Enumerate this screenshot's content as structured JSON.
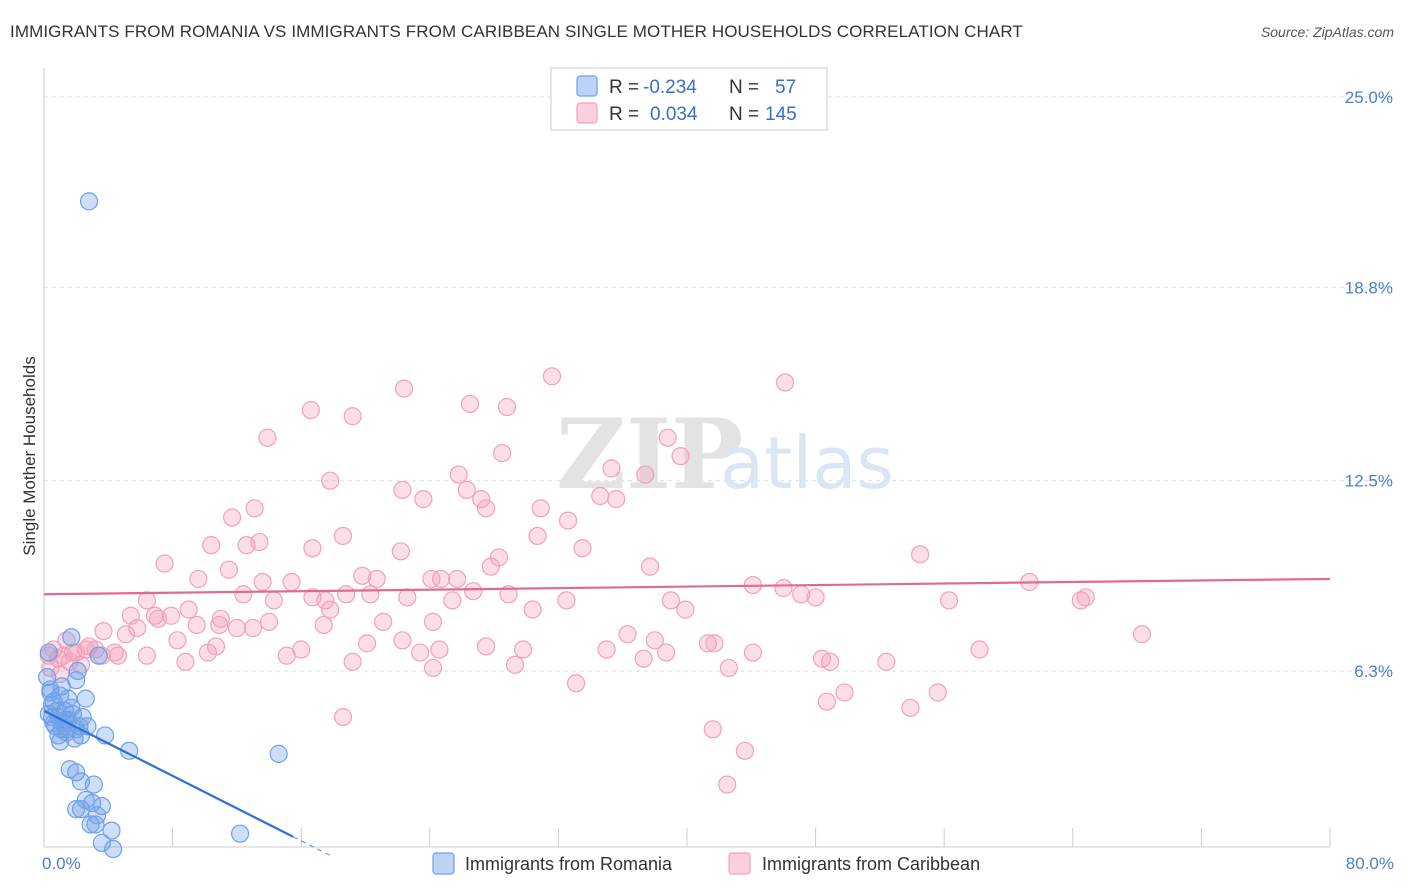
{
  "title": "IMMIGRANTS FROM ROMANIA VS IMMIGRANTS FROM CARIBBEAN SINGLE MOTHER HOUSEHOLDS CORRELATION CHART",
  "source": "Source: ZipAtlas.com",
  "watermark": {
    "zip": "ZIP",
    "atlas": "atlas"
  },
  "colors": {
    "romania": "#6fa0e8",
    "romania_line": "#2f6fd8",
    "caribbean": "#f4a0bb",
    "caribbean_line": "#e06a95",
    "tick_text": "#4a7fd0",
    "grid": "#dddddd"
  },
  "legend": {
    "placement": "top-center",
    "rows": [
      {
        "r_label": "R = ",
        "r_value": "-0.234",
        "n_label": "N = ",
        "n_value": "57"
      },
      {
        "r_label": "R = ",
        "r_value": "0.034",
        "n_label": "N = ",
        "n_value": "145"
      }
    ]
  },
  "chart_data": {
    "type": "scatter",
    "title": "IMMIGRANTS FROM ROMANIA VS IMMIGRANTS FROM CARIBBEAN SINGLE MOTHER HOUSEHOLDS CORRELATION CHART",
    "xlabel": "",
    "ylabel": "Single Mother Households",
    "xlim": [
      0,
      80
    ],
    "ylim": [
      0,
      26
    ],
    "x_tick_labels": {
      "min": "0.0%",
      "max": "80.0%"
    },
    "y_ticks": [
      {
        "value": 6.3,
        "label": "6.3%"
      },
      {
        "value": 12.5,
        "label": "12.5%"
      },
      {
        "value": 18.8,
        "label": "18.8%"
      },
      {
        "value": 25.0,
        "label": "25.0%"
      }
    ],
    "grid": true,
    "legend_placement": "bottom-center",
    "series": [
      {
        "name": "Immigrants from Romania",
        "trend": {
          "x": [
            0,
            15.5
          ],
          "y": [
            5.0,
            0.9
          ],
          "dashed_to_x": 18
        },
        "points": [
          [
            2.8,
            21.6
          ],
          [
            0.3,
            6.9
          ],
          [
            1.7,
            7.4
          ],
          [
            2.1,
            6.3
          ],
          [
            0.4,
            5.6
          ],
          [
            0.6,
            5.3
          ],
          [
            1.0,
            5.5
          ],
          [
            1.5,
            5.4
          ],
          [
            2.6,
            5.4
          ],
          [
            0.8,
            5.0
          ],
          [
            1.3,
            5.0
          ],
          [
            1.8,
            4.9
          ],
          [
            0.5,
            4.8
          ],
          [
            1.2,
            4.6
          ],
          [
            1.5,
            4.7
          ],
          [
            2.4,
            4.8
          ],
          [
            0.7,
            4.5
          ],
          [
            1.1,
            4.4
          ],
          [
            2.0,
            4.4
          ],
          [
            2.7,
            4.5
          ],
          [
            0.9,
            4.2
          ],
          [
            1.4,
            4.3
          ],
          [
            2.3,
            4.2
          ],
          [
            3.8,
            4.2
          ],
          [
            1.0,
            4.0
          ],
          [
            5.3,
            3.7
          ],
          [
            14.6,
            3.6
          ],
          [
            1.6,
            3.1
          ],
          [
            2.0,
            3.0
          ],
          [
            2.3,
            2.7
          ],
          [
            3.1,
            2.6
          ],
          [
            2.6,
            2.1
          ],
          [
            3.0,
            2.0
          ],
          [
            2.0,
            1.8
          ],
          [
            2.3,
            1.8
          ],
          [
            3.6,
            1.9
          ],
          [
            3.3,
            1.6
          ],
          [
            2.9,
            1.3
          ],
          [
            3.2,
            1.3
          ],
          [
            4.2,
            1.1
          ],
          [
            12.2,
            1.0
          ],
          [
            3.6,
            0.7
          ],
          [
            4.3,
            0.5
          ],
          [
            0.2,
            6.1
          ],
          [
            0.5,
            5.2
          ],
          [
            0.9,
            4.8
          ],
          [
            1.3,
            4.7
          ],
          [
            0.3,
            4.9
          ],
          [
            1.7,
            5.1
          ],
          [
            2.2,
            4.5
          ],
          [
            0.6,
            4.6
          ],
          [
            1.1,
            5.8
          ],
          [
            1.9,
            4.1
          ],
          [
            3.4,
            6.8
          ],
          [
            0.4,
            5.7
          ],
          [
            2.0,
            6.0
          ],
          [
            1.4,
            4.4
          ]
        ]
      },
      {
        "name": "Immigrants from Caribbean",
        "trend": {
          "x": [
            0,
            80
          ],
          "y": [
            8.8,
            9.3
          ]
        },
        "points": [
          [
            31.6,
            15.9
          ],
          [
            46.1,
            15.7
          ],
          [
            22.4,
            15.5
          ],
          [
            26.5,
            15.0
          ],
          [
            28.8,
            14.9
          ],
          [
            16.6,
            14.8
          ],
          [
            19.2,
            14.6
          ],
          [
            13.9,
            13.9
          ],
          [
            38.8,
            13.9
          ],
          [
            28.5,
            13.4
          ],
          [
            39.6,
            13.3
          ],
          [
            35.3,
            12.9
          ],
          [
            25.8,
            12.7
          ],
          [
            37.4,
            12.7
          ],
          [
            17.8,
            12.5
          ],
          [
            26.3,
            12.2
          ],
          [
            22.3,
            12.2
          ],
          [
            34.6,
            12.0
          ],
          [
            27.2,
            11.9
          ],
          [
            23.6,
            11.9
          ],
          [
            35.6,
            11.9
          ],
          [
            13.1,
            11.6
          ],
          [
            27.5,
            11.6
          ],
          [
            11.7,
            11.3
          ],
          [
            30.9,
            11.6
          ],
          [
            32.6,
            11.2
          ],
          [
            18.6,
            10.7
          ],
          [
            30.7,
            10.7
          ],
          [
            13.4,
            10.5
          ],
          [
            10.4,
            10.4
          ],
          [
            12.6,
            10.4
          ],
          [
            16.7,
            10.3
          ],
          [
            22.2,
            10.2
          ],
          [
            33.5,
            10.3
          ],
          [
            28.3,
            10.0
          ],
          [
            7.5,
            9.8
          ],
          [
            54.5,
            10.1
          ],
          [
            11.5,
            9.6
          ],
          [
            27.8,
            9.7
          ],
          [
            37.7,
            9.7
          ],
          [
            9.6,
            9.3
          ],
          [
            13.6,
            9.2
          ],
          [
            15.4,
            9.2
          ],
          [
            19.8,
            9.4
          ],
          [
            24.1,
            9.3
          ],
          [
            24.7,
            9.3
          ],
          [
            25.7,
            9.3
          ],
          [
            20.7,
            9.3
          ],
          [
            44.1,
            9.1
          ],
          [
            46.0,
            9.0
          ],
          [
            61.3,
            9.2
          ],
          [
            12.4,
            8.8
          ],
          [
            14.3,
            8.6
          ],
          [
            16.7,
            8.7
          ],
          [
            17.5,
            8.6
          ],
          [
            18.8,
            8.8
          ],
          [
            20.3,
            8.8
          ],
          [
            22.6,
            8.7
          ],
          [
            25.4,
            8.6
          ],
          [
            28.9,
            8.8
          ],
          [
            32.5,
            8.6
          ],
          [
            39.0,
            8.6
          ],
          [
            48.0,
            8.7
          ],
          [
            56.3,
            8.6
          ],
          [
            64.5,
            8.6
          ],
          [
            64.8,
            8.7
          ],
          [
            6.4,
            8.6
          ],
          [
            5.4,
            8.1
          ],
          [
            9.0,
            8.3
          ],
          [
            11.0,
            8.0
          ],
          [
            14.0,
            7.9
          ],
          [
            17.8,
            8.3
          ],
          [
            21.1,
            7.9
          ],
          [
            24.2,
            7.9
          ],
          [
            30.4,
            8.3
          ],
          [
            39.9,
            8.3
          ],
          [
            6.9,
            8.1
          ],
          [
            7.1,
            8.0
          ],
          [
            3.7,
            7.6
          ],
          [
            5.1,
            7.5
          ],
          [
            8.3,
            7.3
          ],
          [
            9.5,
            7.8
          ],
          [
            10.9,
            7.8
          ],
          [
            12.0,
            7.7
          ],
          [
            13.0,
            7.7
          ],
          [
            17.4,
            7.8
          ],
          [
            20.1,
            7.2
          ],
          [
            22.3,
            7.3
          ],
          [
            24.6,
            7.0
          ],
          [
            27.5,
            7.1
          ],
          [
            29.8,
            7.0
          ],
          [
            36.3,
            7.5
          ],
          [
            38.0,
            7.3
          ],
          [
            41.3,
            7.2
          ],
          [
            41.7,
            7.2
          ],
          [
            58.2,
            7.0
          ],
          [
            68.3,
            7.5
          ],
          [
            2.8,
            7.1
          ],
          [
            3.2,
            7.0
          ],
          [
            2.0,
            6.9
          ],
          [
            1.2,
            6.8
          ],
          [
            0.9,
            6.7
          ],
          [
            1.6,
            6.6
          ],
          [
            2.3,
            6.5
          ],
          [
            3.6,
            6.8
          ],
          [
            4.6,
            6.8
          ],
          [
            6.4,
            6.8
          ],
          [
            8.8,
            6.6
          ],
          [
            10.2,
            6.9
          ],
          [
            15.1,
            6.8
          ],
          [
            19.2,
            6.6
          ],
          [
            24.2,
            6.4
          ],
          [
            29.3,
            6.5
          ],
          [
            37.3,
            6.7
          ],
          [
            38.7,
            6.9
          ],
          [
            42.6,
            6.4
          ],
          [
            48.4,
            6.7
          ],
          [
            48.9,
            6.6
          ],
          [
            52.4,
            6.6
          ],
          [
            33.1,
            5.9
          ],
          [
            49.8,
            5.6
          ],
          [
            55.6,
            5.6
          ],
          [
            48.7,
            5.3
          ],
          [
            53.9,
            5.1
          ],
          [
            18.6,
            4.8
          ],
          [
            41.6,
            4.4
          ],
          [
            43.6,
            3.7
          ],
          [
            42.5,
            2.6
          ],
          [
            0.3,
            6.8
          ],
          [
            0.6,
            7.0
          ],
          [
            1.0,
            6.2
          ],
          [
            1.4,
            7.3
          ],
          [
            0.4,
            6.4
          ],
          [
            2.6,
            7.0
          ],
          [
            4.4,
            6.9
          ],
          [
            1.8,
            6.9
          ],
          [
            5.8,
            7.7
          ],
          [
            7.9,
            8.1
          ],
          [
            10.7,
            7.1
          ],
          [
            23.4,
            6.9
          ],
          [
            35.0,
            7.0
          ],
          [
            44.1,
            6.9
          ],
          [
            47.1,
            8.8
          ],
          [
            16.0,
            7.0
          ],
          [
            26.7,
            8.9
          ]
        ]
      }
    ]
  }
}
